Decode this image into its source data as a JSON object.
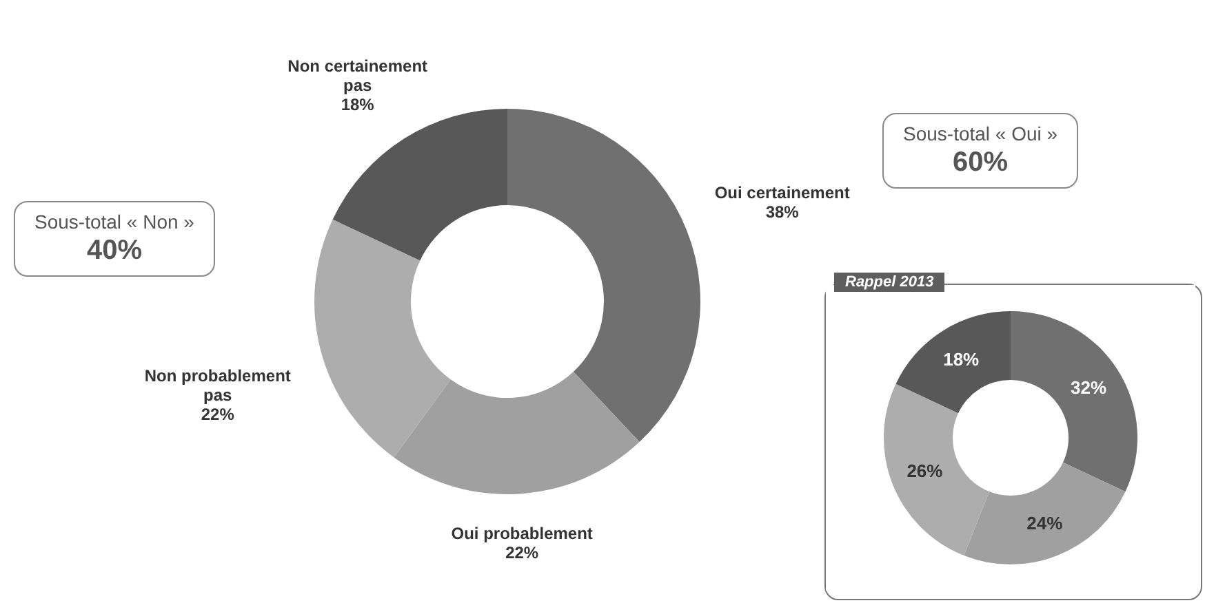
{
  "chart_data": [
    {
      "type": "donut",
      "categories": [
        "Oui certainement",
        "Oui probablement",
        "Non probablement pas",
        "Non certainement pas"
      ],
      "values": [
        38,
        22,
        22,
        18
      ],
      "value_labels": [
        "38%",
        "22%",
        "22%",
        "18%"
      ],
      "colors": [
        "#707070",
        "#a0a0a0",
        "#adadad",
        "#585858"
      ],
      "annotations": [
        "Sous-total « Oui »",
        "60%",
        "Sous-total « Non »",
        "40%"
      ]
    },
    {
      "type": "donut",
      "title": "Rappel 2013",
      "categories": [
        null,
        null,
        null,
        null
      ],
      "values": [
        32,
        24,
        26,
        18
      ],
      "value_labels": [
        "32%",
        "24%",
        "26%",
        "18%"
      ],
      "colors": [
        "#707070",
        "#a0a0a0",
        "#adadad",
        "#585858"
      ]
    }
  ]
}
